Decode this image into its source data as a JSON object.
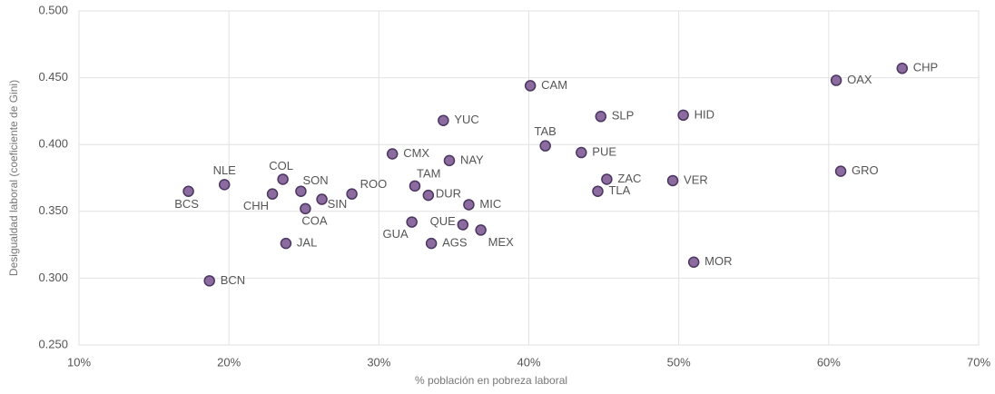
{
  "chart_data": {
    "type": "scatter",
    "xlabel": "% población en pobreza laboral",
    "ylabel": "Desigualdad laboral (coeficiente de Gini)",
    "point_labels": [
      "CHP",
      "OAX",
      "GRO",
      "CAM",
      "YUC",
      "SLP",
      "HID",
      "TAB",
      "PUE",
      "CMX",
      "NAY",
      "ZAC",
      "VER",
      "TLA",
      "NLE",
      "BCS",
      "COL",
      "SON",
      "CHH",
      "SIN",
      "COA",
      "ROO",
      "TAM",
      "DUR",
      "MIC",
      "GUA",
      "QUE",
      "MEX",
      "AGS",
      "JAL",
      "BCN",
      "MOR"
    ],
    "x": [
      64.9,
      60.5,
      60.8,
      40.1,
      34.3,
      44.8,
      50.3,
      41.1,
      43.5,
      30.9,
      34.7,
      45.2,
      49.6,
      44.6,
      19.7,
      17.3,
      23.6,
      24.8,
      22.9,
      26.2,
      25.1,
      28.2,
      32.4,
      33.3,
      36.0,
      32.2,
      35.6,
      36.8,
      33.5,
      23.8,
      18.7,
      51.0
    ],
    "values": [
      0.457,
      0.448,
      0.38,
      0.444,
      0.418,
      0.421,
      0.422,
      0.399,
      0.394,
      0.393,
      0.388,
      0.374,
      0.373,
      0.365,
      0.37,
      0.365,
      0.374,
      0.365,
      0.363,
      0.359,
      0.352,
      0.363,
      0.369,
      0.362,
      0.355,
      0.342,
      0.34,
      0.336,
      0.326,
      0.326,
      0.298,
      0.312
    ],
    "color": "#8c6b9f",
    "edge_color": "#4b3561",
    "xlim": [
      10,
      70
    ],
    "xticks": [
      {
        "value": 10,
        "label": "10%"
      },
      {
        "value": 20,
        "label": "20%"
      },
      {
        "value": 30,
        "label": "30%"
      },
      {
        "value": 40,
        "label": "40%"
      },
      {
        "value": 50,
        "label": "50%"
      },
      {
        "value": 60,
        "label": "60%"
      },
      {
        "value": 70,
        "label": "70%"
      }
    ],
    "ylim": [
      0.25,
      0.5
    ],
    "yticks": [
      {
        "value": 0.25,
        "label": "0.250"
      },
      {
        "value": 0.3,
        "label": "0.300"
      },
      {
        "value": 0.35,
        "label": "0.350"
      },
      {
        "value": 0.4,
        "label": "0.400"
      },
      {
        "value": 0.45,
        "label": "0.450"
      },
      {
        "value": 0.5,
        "label": "0.500"
      }
    ],
    "grid": true
  }
}
